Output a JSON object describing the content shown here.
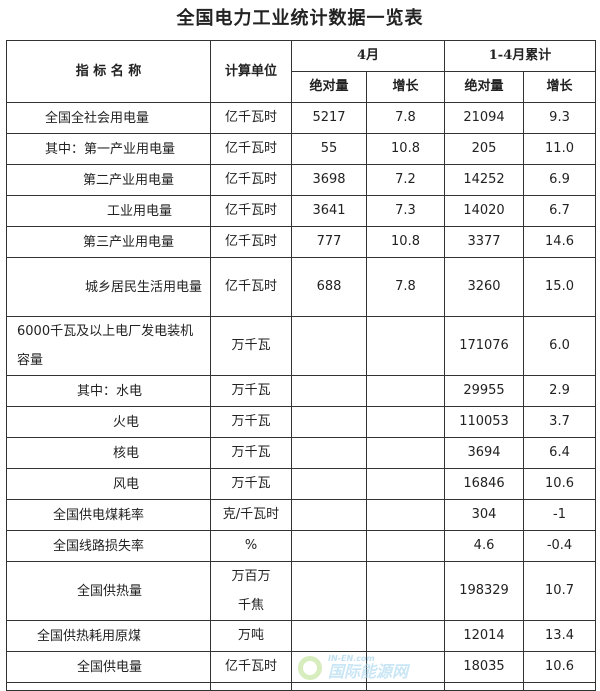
{
  "title": "全国电力工业统计数据一览表",
  "headers": {
    "name": "指 标 名 称",
    "unit": "计算单位",
    "april": "4月",
    "cumulative": "1-4月累计",
    "abs": "绝对量",
    "growth": "增长"
  },
  "rows": [
    {
      "name": "全国全社会用电量",
      "unit": "亿千瓦时",
      "apr_abs": "5217",
      "apr_growth": "7.8",
      "cum_abs": "21094",
      "cum_growth": "9.3"
    },
    {
      "name": "其中：第一产业用电量",
      "unit": "亿千瓦时",
      "apr_abs": "55",
      "apr_growth": "10.8",
      "cum_abs": "205",
      "cum_growth": "11.0"
    },
    {
      "name": "第二产业用电量",
      "unit": "亿千瓦时",
      "apr_abs": "3698",
      "apr_growth": "7.2",
      "cum_abs": "14252",
      "cum_growth": "6.9"
    },
    {
      "name": "工业用电量",
      "unit": "亿千瓦时",
      "apr_abs": "3641",
      "apr_growth": "7.3",
      "cum_abs": "14020",
      "cum_growth": "6.7"
    },
    {
      "name": "第三产业用电量",
      "unit": "亿千瓦时",
      "apr_abs": "777",
      "apr_growth": "10.8",
      "cum_abs": "3377",
      "cum_growth": "14.6"
    },
    {
      "name": "城乡居民生活用电量",
      "unit": "亿千瓦时",
      "apr_abs": "688",
      "apr_growth": "7.8",
      "cum_abs": "3260",
      "cum_growth": "15.0"
    },
    {
      "name": "6000千瓦及以上电厂发电装机容量",
      "unit": "万千瓦",
      "apr_abs": "",
      "apr_growth": "",
      "cum_abs": "171076",
      "cum_growth": "6.0"
    },
    {
      "name": "其中：水电",
      "unit": "万千瓦",
      "apr_abs": "",
      "apr_growth": "",
      "cum_abs": "29955",
      "cum_growth": "2.9"
    },
    {
      "name": "火电",
      "unit": "万千瓦",
      "apr_abs": "",
      "apr_growth": "",
      "cum_abs": "110053",
      "cum_growth": "3.7"
    },
    {
      "name": "核电",
      "unit": "万千瓦",
      "apr_abs": "",
      "apr_growth": "",
      "cum_abs": "3694",
      "cum_growth": "6.4"
    },
    {
      "name": "风电",
      "unit": "万千瓦",
      "apr_abs": "",
      "apr_growth": "",
      "cum_abs": "16846",
      "cum_growth": "10.6"
    },
    {
      "name": "全国供电煤耗率",
      "unit": "克/千瓦时",
      "apr_abs": "",
      "apr_growth": "",
      "cum_abs": "304",
      "cum_growth": "-1"
    },
    {
      "name": "全国线路损失率",
      "unit": "%",
      "apr_abs": "",
      "apr_growth": "",
      "cum_abs": "4.6",
      "cum_growth": "-0.4"
    },
    {
      "name": "全国供热量",
      "unit": "万百万千焦",
      "apr_abs": "",
      "apr_growth": "",
      "cum_abs": "198329",
      "cum_growth": "10.7"
    },
    {
      "name": "全国供热耗用原煤",
      "unit": "万吨",
      "apr_abs": "",
      "apr_growth": "",
      "cum_abs": "12014",
      "cum_growth": "13.4"
    },
    {
      "name": "全国供电量",
      "unit": "亿千瓦时",
      "apr_abs": "",
      "apr_growth": "",
      "cum_abs": "18035",
      "cum_growth": "10.6"
    }
  ],
  "watermark": "IN-EN.com 国际能源网"
}
